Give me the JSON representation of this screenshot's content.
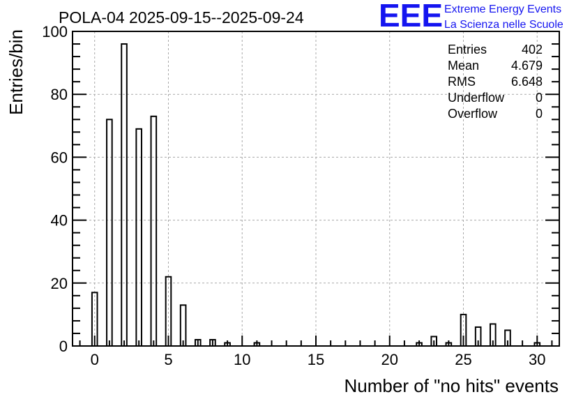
{
  "chart_data": {
    "type": "bar",
    "title": "POLA-04 2025-09-15--2025-09-24",
    "xlabel": "Number of \"no hits\" events",
    "ylabel": "Entries/bin",
    "xlim": [
      -1.5,
      31.5
    ],
    "ylim": [
      0,
      100
    ],
    "x_ticks": [
      0,
      5,
      10,
      15,
      20,
      25,
      30
    ],
    "y_ticks": [
      0,
      20,
      40,
      60,
      80,
      100
    ],
    "grid": true,
    "bar_color": "#000000",
    "bins": [
      {
        "x": 0,
        "value": 17
      },
      {
        "x": 1,
        "value": 72
      },
      {
        "x": 2,
        "value": 96
      },
      {
        "x": 3,
        "value": 69
      },
      {
        "x": 4,
        "value": 73
      },
      {
        "x": 5,
        "value": 22
      },
      {
        "x": 6,
        "value": 13
      },
      {
        "x": 7,
        "value": 2
      },
      {
        "x": 8,
        "value": 2
      },
      {
        "x": 9,
        "value": 1
      },
      {
        "x": 11,
        "value": 1
      },
      {
        "x": 22,
        "value": 1
      },
      {
        "x": 23,
        "value": 3
      },
      {
        "x": 24,
        "value": 1
      },
      {
        "x": 25,
        "value": 10
      },
      {
        "x": 26,
        "value": 6
      },
      {
        "x": 27,
        "value": 7
      },
      {
        "x": 28,
        "value": 5
      },
      {
        "x": 30,
        "value": 1
      }
    ],
    "stats_box": {
      "placement": "top-right",
      "rows": [
        {
          "label": "Entries",
          "value": "402"
        },
        {
          "label": "Mean",
          "value": "4.679"
        },
        {
          "label": "RMS",
          "value": "6.648"
        },
        {
          "label": "Underflow",
          "value": "0"
        },
        {
          "label": "Overflow",
          "value": "0"
        }
      ]
    }
  },
  "logo": {
    "letters": "EEE",
    "line1": "Extreme Energy Events",
    "line2": "La Scienza nelle Scuole",
    "color": "#1414f0"
  }
}
